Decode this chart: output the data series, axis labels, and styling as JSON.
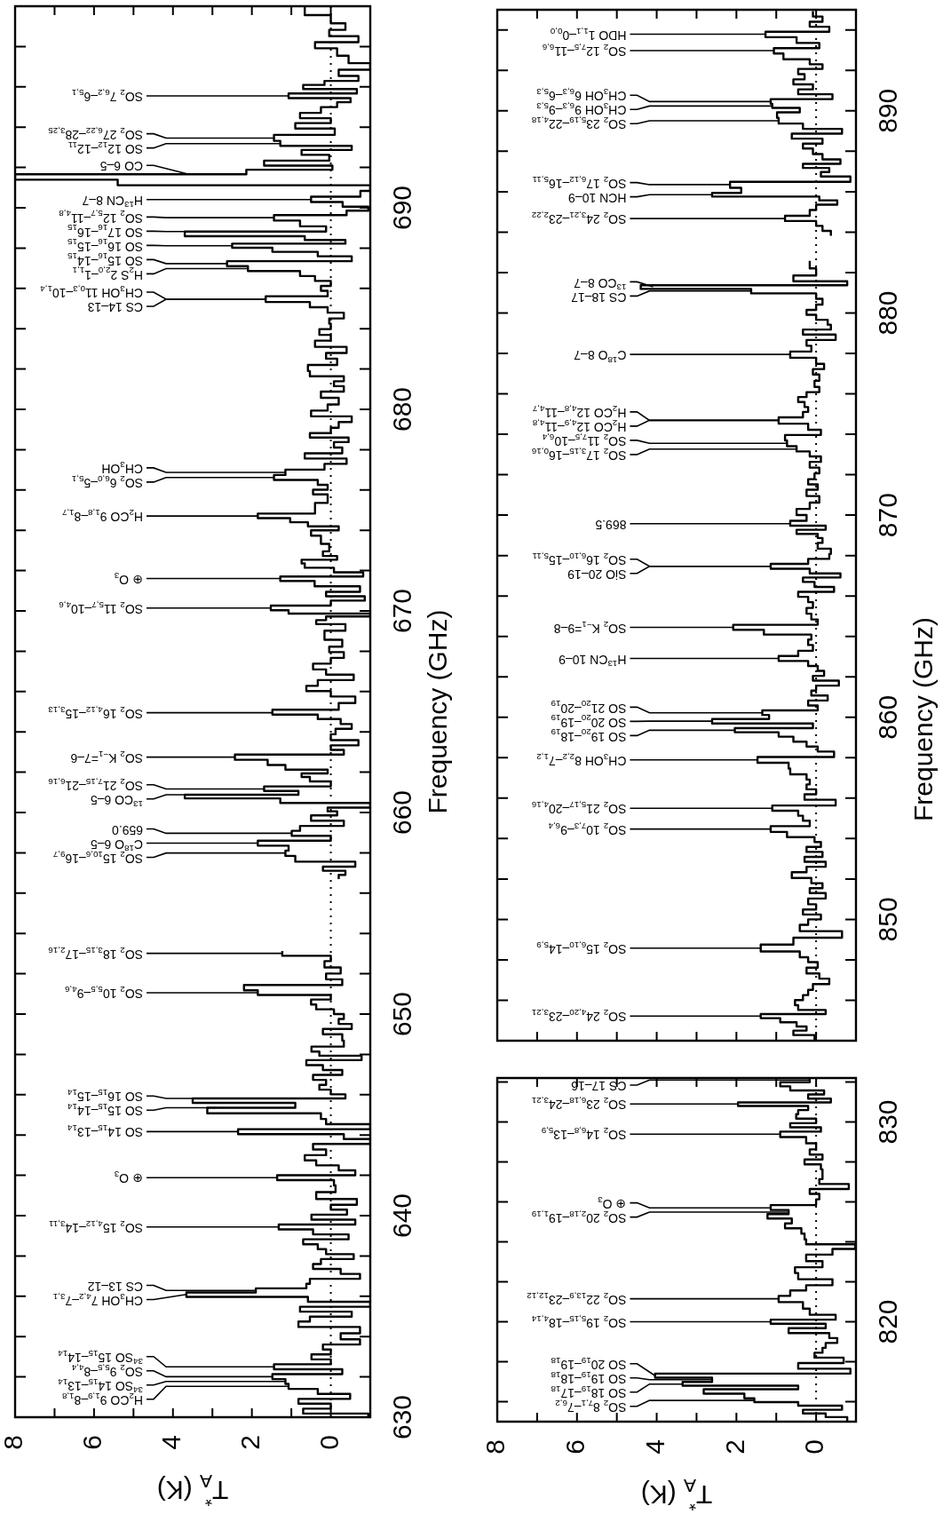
{
  "chart_data": [
    {
      "type": "step",
      "orientation": "horizontal",
      "xlabel": "T$_{A}$$^{*}$ (K)",
      "ylabel": "Frequency (GHz)",
      "xlim": [
        8,
        -1
      ],
      "ylim": [
        630,
        700
      ],
      "xticks": [
        0,
        {
          "value": 1,
          "label": null
        },
        2,
        {
          "value": 3,
          "label": null
        },
        4,
        {
          "value": 5,
          "label": null
        },
        6,
        {
          "value": 7,
          "label": null
        },
        8
      ],
      "yticks": [
        630,
        {
          "value": 632,
          "label": null
        },
        {
          "value": 634,
          "label": null
        },
        {
          "value": 636,
          "label": null
        },
        {
          "value": 638,
          "label": null
        },
        640,
        {
          "value": 642,
          "label": null
        },
        {
          "value": 644,
          "label": null
        },
        {
          "value": 646,
          "label": null
        },
        {
          "value": 648,
          "label": null
        },
        650,
        {
          "value": 652,
          "label": null
        },
        {
          "value": 654,
          "label": null
        },
        {
          "value": 656,
          "label": null
        },
        {
          "value": 658,
          "label": null
        },
        660,
        {
          "value": 662,
          "label": null
        },
        {
          "value": 664,
          "label": null
        },
        {
          "value": 666,
          "label": null
        },
        {
          "value": 668,
          "label": null
        },
        670,
        {
          "value": 672,
          "label": null
        },
        {
          "value": 674,
          "label": null
        },
        {
          "value": 676,
          "label": null
        },
        {
          "value": 678,
          "label": null
        },
        680,
        {
          "value": 682,
          "label": null
        },
        {
          "value": 684,
          "label": null
        },
        {
          "value": 686,
          "label": null
        },
        {
          "value": 688,
          "label": null
        },
        690,
        {
          "value": 692,
          "label": null
        },
        {
          "value": 694,
          "label": null
        },
        {
          "value": 696,
          "label": null
        },
        {
          "value": 698,
          "label": null
        }
      ],
      "ref_lines": [
        {
          "axis": "x",
          "value": 0,
          "line_style": "dotted"
        }
      ],
      "series": [
        {
          "color": "#000000",
          "x": [
            699.79,
            699.33,
            698.97,
            698.68,
            698.35,
            698.08,
            697.75,
            697.34,
            697.01,
            696.69,
            696.39,
            696.2,
            695.99,
            695.79,
            695.55,
            695.33,
            695.14,
            694.85,
            694.57,
            694.32,
            694.08,
            693.78,
            693.46,
            693.18,
            692.97,
            692.77,
            692.48,
            692.2,
            691.99,
            691.79,
            691.53,
            691.26,
            690.98,
            690.69,
            690.41,
            690.16,
            689.95,
            689.76,
            689.51,
            689.22,
            688.94,
            688.7,
            688.48,
            688.32,
            688.12,
            687.91,
            687.72,
            687.47,
            687.23,
            686.98,
            686.74,
            686.49,
            686.25,
            686.0,
            685.76,
            685.46,
            685.19,
            684.94,
            684.65,
            684.37,
            684.13,
            683.83,
            683.56,
            683.26,
            682.94,
            682.66,
            682.37,
            682.04,
            681.76,
            681.52,
            681.27,
            681.03,
            680.73,
            680.41,
            680.08,
            679.8,
            679.51,
            679.23,
            678.94,
            678.7,
            678.5,
            678.25,
            677.96,
            677.68,
            677.44,
            677.15,
            676.87,
            676.62,
            676.38,
            676.13,
            675.89,
            675.68,
            675.48,
            675.24,
            674.95,
            674.71,
            674.5,
            674.3,
            674.09,
            673.9,
            673.57,
            673.08,
            672.83,
            672.62,
            672.46,
            672.26,
            672.02,
            671.81,
            671.61,
            671.37,
            671.07,
            670.83,
            670.63,
            670.39,
            670.14,
            669.93,
            669.8,
            669.65,
            669.44,
            669.25,
            668.79,
            668.35,
            668.1,
            667.81,
            667.53,
            667.24,
            666.96,
            666.72,
            666.42,
            666.15,
            665.9,
            665.61,
            665.25,
            664.95,
            664.76,
            664.51,
            664.27,
            664.03,
            663.73,
            663.45,
            663.21,
            663.0,
            662.75,
            662.48,
            662.23,
            662.02,
            661.86,
            661.66,
            661.42,
            661.17,
            660.96,
            660.8,
            660.6,
            660.35,
            660.14,
            659.98,
            659.73,
            659.46,
            659.21,
            658.97,
            658.72,
            658.48,
            658.23,
            657.99,
            657.7,
            657.42,
            657.21,
            657.01,
            656.8,
            655,
            653.01,
            652.77,
            652.48,
            652.15,
            651.87,
            651.58,
            651.3,
            651.06,
            650.84,
            650.6,
            650.35,
            650.12,
            649.88,
            649.63,
            649.39,
            649.14,
            648.85,
            648.52,
            648.25,
            648.03,
            647.84,
            647.59,
            647.35,
            647.1,
            646.86,
            646.61,
            646.37,
            646.13,
            645.91,
            645.72,
            645.47,
            645.23,
            644.93,
            644.66,
            644.41,
            644.17,
            643.92,
            643.68,
            643.43,
            643.14,
            642.86,
            642.62,
            642.37,
            642.13,
            641.88,
            641.64,
            641.35,
            640.99,
            640.66,
            640.42,
            640.17,
            639.93,
            639.68,
            639.44,
            639.19,
            638.95,
            638.7,
            638.46,
            638.21,
            637.97,
            637.72,
            637.48,
            637.23,
            636.99,
            636.74,
            636.5,
            636.29,
            636.09,
            635.85,
            635.6,
            635.36,
            635.11,
            634.87,
            634.62,
            634.33,
            634.0,
            633.73,
            633.48,
            633.24,
            632.99,
            632.75,
            632.5,
            632.26,
            632.01,
            631.77,
            631.53,
            631.28,
            631.03,
            630.79,
            630.55,
            630.3,
            630.06
          ],
          "values": [
            0.66,
            0,
            -0.37,
            0.04,
            -0.7,
            0.4,
            -0.16,
            -0.45,
            -1,
            -0.2,
            -0.7,
            0.16,
            0.7,
            -0.66,
            1.07,
            -0.5,
            -0.16,
            0.25,
            0.78,
            0,
            0.9,
            -0.1,
            1.44,
            1.28,
            -0.53,
            0.74,
            0.04,
            1.69,
            -0.04,
            2.14,
            8,
            5.4,
            -1,
            -0.75,
            0.5,
            -0.3,
            -0.95,
            -0.4,
            1.44,
            0.78,
            0.12,
            3.7,
            0.66,
            -0.37,
            2.5,
            1.48,
            0.33,
            -0.53,
            2.63,
            2.1,
            0.78,
            0.4,
            0,
            0.25,
            0.08,
            1.65,
            0.53,
            0.08,
            -0.33,
            0.04,
            0,
            0.29,
            0,
            0.4,
            -0.4,
            0.12,
            -0.16,
            0.58,
            0.53,
            -0.33,
            -0.08,
            -0.33,
            0.25,
            -0.2,
            0.08,
            0.5,
            -0.53,
            -0.2,
            0,
            0.53,
            -0.45,
            -0.08,
            -0.29,
            0.66,
            -0.4,
            0.16,
            1.15,
            1.44,
            0.33,
            0.08,
            0.45,
            0.08,
            0.08,
            0.4,
            0.4,
            1.85,
            1.03,
            0.58,
            -0.2,
            0.5,
            0.25,
            0.04,
            0.2,
            -0.16,
            0.74,
            0.66,
            -0.08,
            -0.82,
            1.28,
            0.41,
            -0.74,
            0.12,
            -0.86,
            0,
            1.52,
            1.07,
            -1,
            0.12,
            0.37,
            -0.37,
            0.16,
            -0.29,
            0.04,
            -0.33,
            0,
            0.45,
            0.12,
            -0.58,
            0.33,
            0.62,
            0,
            -0.62,
            -0.2,
            1.48,
            0.33,
            -0.25,
            -0.53,
            -0.12,
            0,
            -0.7,
            0,
            -0.33,
            2.43,
            1.6,
            1.15,
            0.08,
            0.74,
            0.53,
            0,
            1.69,
            0.82,
            3.7,
            1.28,
            -1,
            0.08,
            -0.16,
            0.5,
            -0.33,
            0.78,
            0.99,
            0,
            1.85,
            1.07,
            1.15,
            0.9,
            -0.62,
            0.2,
            -0.37,
            -0.2,
            null,
            1.23,
            0,
            0.16,
            -0.25,
            0.12,
            -0.29,
            2.2,
            1.85,
            0,
            0.5,
            0.37,
            -0.08,
            -0.33,
            -0.2,
            -0.53,
            0.2,
            -0.29,
            -0.33,
            0.49,
            0.29,
            -0.78,
            0.62,
            0.2,
            -0.29,
            0.45,
            0.12,
            0.29,
            0,
            -0.37,
            3.5,
            0.9,
            3.13,
            0.25,
            0.12,
            -1,
            2.35,
            -0.33,
            -1,
            0.45,
            0.12,
            0.66,
            0.37,
            -0.2,
            -0.62,
            1.36,
            -0.08,
            -0.12,
            0.37,
            -0.66,
            0,
            -0.41,
            0.49,
            -0.62,
            1.32,
            0.45,
            -0.45,
            0.7,
            0.33,
            0.12,
            -0.58,
            0.25,
            0.45,
            -0.25,
            -0.74,
            0.53,
            0.62,
            1.9,
            3.66,
            0.58,
            -1,
            0.78,
            -0.53,
            0.53,
            0.82,
            -0.74,
            -0.25,
            -0.74,
            0.2,
            0,
            0.49,
            0,
            1.44,
            -0.29,
            1.48,
            1.15,
            1.07,
            0.33,
            -0.49,
            0.82,
            0,
            0.7,
            -0.95
          ]
        }
      ],
      "annotations": [
        {
          "text": "SO$_{2}$ 7$_{6,2}$–6$_{5,1}$",
          "x": 1.07,
          "y": 695.55
        },
        {
          "text": "SO$_{2}$ 27$_{6,22}$–28$_{3,25}$",
          "x": 1.44,
          "y": 693.46
        },
        {
          "text": "SO 12$_{12}$–12$_{11}$",
          "x": 1.28,
          "y": 693.18
        },
        {
          "text": "CO 6–5",
          "x": 3.6,
          "y": 691.66
        },
        {
          "text": "H$^{13}$CN 8–7",
          "x": 0.5,
          "y": 690.41
        },
        {
          "text": "SO$_{2}$ 12$_{5,7}$–11$_{4,8}$",
          "x": 1.44,
          "y": 689.51
        },
        {
          "text": "SO 17$_{16}$–16$_{15}$",
          "x": 2.5,
          "y": 688.82
        },
        {
          "text": "SO 16$_{16}$–15$_{15}$",
          "x": 2.5,
          "y": 688.12
        },
        {
          "text": "SO 15$_{16}$–14$_{15}$",
          "x": 2.63,
          "y": 687.23
        },
        {
          "text": "H$_{2}$S 2$_{2,0}$–1$_{1,1}$",
          "x": 2.1,
          "y": 686.98
        },
        {
          "text": "CH$_{3}$OH 11$_{0,3}$–10$_{1,4}$",
          "x": 1.65,
          "y": 685.46
        },
        {
          "text": "CS 14–13",
          "x": 1.65,
          "y": 685.46
        },
        {
          "text": "CH$_{3}$OH",
          "x": 1.15,
          "y": 676.87
        },
        {
          "text": "SO$_{2}$ 6$_{6,0}$–5$_{5,1}$",
          "x": 1.44,
          "y": 676.62
        },
        {
          "text": "H$_{2}$CO 9$_{1,8}$–8$_{1,7}$",
          "x": 1.85,
          "y": 674.71
        },
        {
          "text": "⊕ O$_{3}$",
          "x": 1.28,
          "y": 671.61
        },
        {
          "text": "SO$_{2}$ 11$_{5,7}$–10$_{4,6}$",
          "x": 1.52,
          "y": 670.14
        },
        {
          "text": "SO$_{2}$ 16$_{4,12}$–15$_{3,13}$",
          "x": 1.48,
          "y": 664.95
        },
        {
          "text": "SO$_{2}$ K$_{−1}$=7–6",
          "x": 2.43,
          "y": 662.75
        },
        {
          "text": "SO$_{2}$ 21$_{7,15}$–21$_{6,16}$",
          "x": 1.69,
          "y": 661.17
        },
        {
          "text": "$^{13}$CO 6–5",
          "x": 2.5,
          "y": 660.88
        },
        {
          "text": "659.0",
          "x": 0.99,
          "y": 658.97
        },
        {
          "text": "C$^{18}$O 6–5",
          "x": 1.85,
          "y": 658.48
        },
        {
          "text": "SO$_{2}$ 15$_{10,6}$–16$_{9,7}$",
          "x": 1.15,
          "y": 657.99
        },
        {
          "text": "SO$_{2}$ 18$_{3,15}$–17$_{2,16}$",
          "x": 1.23,
          "y": 653.01
        },
        {
          "text": "SO$_{2}$ 10$_{5,5}$–9$_{4,6}$",
          "x": 1.85,
          "y": 651.06
        },
        {
          "text": "SO 16$_{15}$–15$_{14}$",
          "x": 2.5,
          "y": 645.815
        },
        {
          "text": "SO 15$_{15}$–14$_{14}$",
          "x": 2.9,
          "y": 645.35
        },
        {
          "text": "SO 14$_{15}$–13$_{14}$",
          "x": 2.35,
          "y": 644.17
        },
        {
          "text": "⊕ O$_{3}$",
          "x": 1.36,
          "y": 641.88
        },
        {
          "text": "SO$_{2}$ 15$_{4,12}$–14$_{3,11}$",
          "x": 1.32,
          "y": 639.44
        },
        {
          "text": "CS 13–12",
          "x": 1.9,
          "y": 636.29
        },
        {
          "text": "CH$_{3}$OH 7$_{4,2}$–7$_{3,1}$",
          "x": 3.66,
          "y": 636.09
        },
        {
          "text": "$^{34}$SO 15$_{15}$–14$_{14}$",
          "x": 1.44,
          "y": 632.5
        },
        {
          "text": "SO$_{2}$ 9$_{5,5}$–8$_{4,4}$",
          "x": 1.48,
          "y": 632.01
        },
        {
          "text": "$^{34}$SO 14$_{15}$–13$_{14}$",
          "x": 1.15,
          "y": 631.77
        },
        {
          "text": "H$_{2}$CO 9$_{1,9}$–8$_{1,8}$",
          "x": 1.07,
          "y": 631.53
        }
      ]
    },
    {
      "type": "step",
      "orientation": "horizontal",
      "xlabel": "T$_{A}$$^{*}$ (K)",
      "xlim": [
        8,
        -1
      ],
      "ylim": [
        815,
        832.2
      ],
      "xticks": [
        0,
        {
          "value": 1,
          "label": null
        },
        2,
        {
          "value": 3,
          "label": null
        },
        4,
        {
          "value": 5,
          "label": null
        },
        6,
        {
          "value": 7,
          "label": null
        },
        8
      ],
      "yticks": [
        {
          "value": 816,
          "label": null
        },
        {
          "value": 818,
          "label": null
        },
        820,
        {
          "value": 822,
          "label": null
        },
        {
          "value": 824,
          "label": null
        },
        {
          "value": 826,
          "label": null
        },
        {
          "value": 828,
          "label": null
        },
        830,
        {
          "value": 832,
          "label": null
        }
      ],
      "ref_lines": [
        {
          "axis": "x",
          "value": 0,
          "line_style": "dotted"
        }
      ],
      "series": [
        {
          "color": "#000000",
          "x": [
            832.1,
            831.88,
            831.69,
            831.47,
            831.28,
            831.06,
            830.9,
            830.7,
            830.49,
            830.29,
            830.05,
            829.83,
            829.64,
            829.39,
            829.1,
            828.77,
            828.49,
            828.24,
            828.0,
            827.75,
            827.51,
            827.26,
            827.02,
            826.77,
            826.52,
            826.28,
            825.98,
            825.7,
            825.49,
            825.29,
            825.05,
            824.8,
            824.56,
            824.26,
            823.98,
            823.77,
            823.52,
            823.2,
            822.87,
            822.59,
            822.29,
            821.97,
            821.69,
            821.44,
            821.15,
            820.82,
            820.49,
            820.21,
            820.0,
            819.8,
            819.56,
            819.31,
            819.06,
            818.82,
            818.57,
            818.33,
            818.08,
            817.79,
            817.51,
            817.3,
            817.1,
            816.88,
            816.72,
            816.52,
            816.28,
            816.06,
            815.9,
            815.7,
            815.49,
            815.33,
            815.13
          ],
          "values": [
            0.16,
            0.9,
            0.65,
            -0.2,
            0.2,
            -0.37,
            1.96,
            0.2,
            0.45,
            0.5,
            0,
            0.65,
            -0.12,
            0.9,
            0.25,
            0,
            0.16,
            -0.16,
            0.29,
            -0.12,
            -0.16,
            -0.16,
            -0.08,
            -0.82,
            0.16,
            -0.08,
            0,
            1.14,
            0.69,
            1.22,
            0.61,
            0.78,
            0.37,
            0.29,
            0.25,
            -0.98,
            -0.41,
            0.25,
            -0.16,
            0.53,
            0.45,
            -0.41,
            0.25,
            0.65,
            0.94,
            0.33,
            0.16,
            -0.49,
            1.14,
            -0.24,
            0.69,
            -0.33,
            -0.53,
            -0.24,
            -0.16,
            0.04,
            -0.69,
            0.45,
            -0.86,
            4.04,
            2.61,
            3.35,
            0.45,
            2.82,
            1.8,
            1.55,
            0.45,
            -0.65,
            0.33,
            -0.24,
            -0.78
          ]
        }
      ],
      "annotations": [
        {
          "text": "CS 17–16",
          "x": 0.16,
          "y": 832.1
        },
        {
          "text": "SO$_{2}$ 23$_{6,18}$–24$_{3,21}$",
          "x": 1.96,
          "y": 830.9
        },
        {
          "text": "SO$_{2}$ 14$_{6,8}$–13$_{5,9}$",
          "x": 0.9,
          "y": 829.39
        },
        {
          "text": "⊕ O$_{3}$",
          "x": 1.14,
          "y": 825.7
        },
        {
          "text": "SO$_{2}$ 20$_{2,18}$–19$_{1,19}$",
          "x": 0.69,
          "y": 825.49
        },
        {
          "text": "SO$_{2}$ 22$_{13,9}$–23$_{12,12}$",
          "x": 0.94,
          "y": 821.15
        },
        {
          "text": "SO$_{2}$ 19$_{5,15}$–18$_{4,14}$",
          "x": 1.14,
          "y": 820.0
        },
        {
          "text": "SO 20$_{19}$–19$_{18}$",
          "x": 4.04,
          "y": 817.3
        },
        {
          "text": "SO 19$_{19}$–18$_{18}$",
          "x": 2.61,
          "y": 817.1
        },
        {
          "text": "SO 18$_{19}$–17$_{18}$",
          "x": 3.35,
          "y": 816.88
        },
        {
          "text": "SO$_{2}$ 8$_{7,1}$–7$_{6,2}$",
          "x": 1.55,
          "y": 816.06
        }
      ]
    },
    {
      "type": "step",
      "orientation": "horizontal",
      "ylabel": "Frequency (GHz)",
      "tick_labels": "y",
      "xlim": [
        8,
        -1
      ],
      "ylim": [
        844,
        895
      ],
      "xticks": [
        0,
        {
          "value": 1,
          "label": null
        },
        2,
        {
          "value": 3,
          "label": null
        },
        4,
        {
          "value": 5,
          "label": null
        },
        6,
        {
          "value": 7,
          "label": null
        },
        8
      ],
      "yticks": [
        {
          "value": 844,
          "label": null
        },
        {
          "value": 846,
          "label": null
        },
        {
          "value": 848,
          "label": null
        },
        850,
        {
          "value": 852,
          "label": null
        },
        {
          "value": 854,
          "label": null
        },
        {
          "value": 856,
          "label": null
        },
        {
          "value": 858,
          "label": null
        },
        860,
        {
          "value": 862,
          "label": null
        },
        {
          "value": 864,
          "label": null
        },
        {
          "value": 866,
          "label": null
        },
        {
          "value": 868,
          "label": null
        },
        870,
        {
          "value": 872,
          "label": null
        },
        {
          "value": 874,
          "label": null
        },
        {
          "value": 876,
          "label": null
        },
        {
          "value": 878,
          "label": null
        },
        880,
        {
          "value": 882,
          "label": null
        },
        {
          "value": 884,
          "label": null
        },
        {
          "value": 886,
          "label": null
        },
        {
          "value": 888,
          "label": null
        },
        890,
        {
          "value": 892,
          "label": null
        },
        {
          "value": 894,
          "label": null
        }
      ],
      "ref_lines": [
        {
          "axis": "x",
          "value": 0,
          "line_style": "dotted"
        }
      ],
      "series": [
        {
          "color": "#000000",
          "x": [
            894.8,
            894.53,
            894.28,
            894.04,
            893.79,
            893.5,
            893.22,
            892.98,
            892.69,
            892.41,
            892.2,
            891.95,
            891.68,
            891.43,
            891.19,
            890.94,
            890.7,
            890.46,
            890.24,
            890.05,
            889.8,
            889.51,
            889.23,
            888.99,
            888.75,
            888.5,
            888.26,
            888.01,
            887.72,
            887.48,
            887.28,
            887.07,
            886.87,
            886.63,
            886.35,
            886.03,
            885.85,
            885.67,
            885.47,
            885.24,
            884.95,
            884.67,
            884.43,
            884.19,
            883.94,
            883.2,
            882.39,
            882.02,
            881.69,
            881.45,
            881.29,
            881.09,
            880.85,
            880.55,
            880.28,
            880.03,
            879.79,
            879.54,
            879.3,
            879.06,
            878.81,
            878.52,
            878.24,
            877.95,
            877.62,
            877.35,
            877.1,
            876.81,
            876.48,
            876.21,
            875.96,
            875.72,
            875.47,
            875.23,
            874.98,
            874.69,
            874.36,
            874.09,
            873.84,
            873.55,
            873.27,
            873.03,
            872.78,
            872.49,
            872.21,
            871.92,
            871.64,
            871.4,
            871.11,
            870.78,
            870.46,
            870.15,
            869.86,
            869.58,
            869.37,
            869.18,
            868.97,
            868.77,
            868.48,
            868.2,
            867.96,
            867.71,
            867.47,
            867.22,
            867.01,
            866.82,
            866.57,
            866.33,
            866.08,
            865.84,
            865.55,
            865.27,
            864.98,
            864.7,
            864.45,
            864.21,
            863.97,
            863.72,
            863.43,
            863.15,
            862.91,
            862.66,
            862.42,
            862.17,
            861.93,
            861.69,
            861.44,
            861.2,
            860.95,
            860.71,
            860.46,
            860.22,
            860.01,
            859.81,
            859.57,
            859.36,
            859.16,
            858.92,
            858.67,
            858.43,
            858.18,
            857.89,
            857.61,
            857.32,
            857.04,
            856.8,
            856.56,
            856.31,
            856.07,
            855.77,
            855.5,
            855.25,
            855.01,
            854.76,
            854.47,
            854.19,
            853.95,
            853.71,
            853.46,
            853.22,
            852.97,
            852.73,
            852.48,
            852.19,
            851.91,
            851.67,
            851.42,
            851.18,
            850.89,
            850.61,
            850.37,
            850.12,
            849.88,
            849.58,
            849.26,
            848.93,
            848.58,
            848.25,
            848.01,
            847.76,
            847.47,
            847.19,
            846.95,
            846.65,
            846.38,
            846.13,
            845.89,
            845.63,
            845.41,
            845.22,
            845.01,
            844.81,
            844.6,
            844.4,
            844.16
          ],
          "values": [
            0.08,
            -0.16,
            0.16,
            -0.33,
            1.27,
            0.49,
            -0.08,
            1.06,
            0.82,
            0.16,
            -0.16,
            0.45,
            0.29,
            0.57,
            0.08,
            0.45,
            -0.41,
            1.14,
            1.1,
            0.41,
            0.98,
            0.94,
            0.33,
            -0.65,
            0.61,
            -0.16,
            0.33,
            0.08,
            -0.16,
            -0.61,
            0.33,
            -0.33,
            -0.12,
            -0.86,
            2.16,
            1.88,
            2.61,
            -0.08,
            -0.53,
            0,
            0.16,
            0.78,
            0,
            -0.16,
            -0.37,
            null,
            0.16,
            0,
            0.57,
            -0.78,
            4.4,
            1.63,
            0,
            -0.16,
            0,
            0.24,
            0,
            -0.29,
            -0.37,
            0.33,
            -0.49,
            0.24,
            0.12,
            0.65,
            0,
            -0.2,
            0.08,
            -0.08,
            0.04,
            -0.08,
            0.24,
            0.45,
            0.29,
            0.2,
            0.33,
            0.94,
            0.2,
            -0.12,
            0.78,
            0.73,
            0.49,
            0.16,
            -0.12,
            0.16,
            -0.08,
            0.04,
            0.2,
            -0.04,
            0.24,
            -0.08,
            0.16,
            0.49,
            0.24,
            0.65,
            -0.24,
            0.49,
            -0.04,
            -0.16,
            -0.04,
            -0.37,
            -0.33,
            0.2,
            1.14,
            0.16,
            -0.61,
            0.33,
            0.04,
            -0.45,
            0.45,
            0.2,
            0.08,
            0.24,
            0.12,
            -0.04,
            2.08,
            1.31,
            0.12,
            0.2,
            0.08,
            0.45,
            0.94,
            0.2,
            -0.04,
            -0.2,
            0.08,
            -0.57,
            0,
            0.12,
            -0.29,
            0.2,
            -0.04,
            1.35,
            1.18,
            2.61,
            0.08,
            2.04,
            0.94,
            0.57,
            0.24,
            -0.04,
            -0.45,
            1.47,
            0.69,
            0.65,
            0.24,
            0.16,
            0.24,
            0,
            0.29,
            -0.49,
            1.1,
            0.45,
            0.33,
            0.16,
            1.14,
            0.73,
            0.04,
            -0.12,
            0.24,
            -0.16,
            0.29,
            -0.24,
            0.24,
            0.61,
            0.12,
            -0.16,
            0.16,
            -0.24,
            0.2,
            0,
            0.33,
            -0.12,
            0.2,
            0.41,
            -0.65,
            0.57,
            1.39,
            0.41,
            0.2,
            -0.04,
            0.24,
            -0.08,
            -0.33,
            0.08,
            0.2,
            0.33,
            0.53,
            0.45,
            -0.24,
            1.39,
            0.9,
            0.49,
            0.24,
            0.57,
            0.04
          ]
        }
      ],
      "annotations": [
        {
          "text": "HDO 1$_{1,1}$–0$_{0,0}$",
          "x": 1.27,
          "y": 893.79
        },
        {
          "text": "SO$_{2}$ 12$_{7,5}$–11$_{6,6}$",
          "x": 1.06,
          "y": 892.98
        },
        {
          "text": "CH$_{3}$OH 6$_{6,3}$–6$_{5,3}$",
          "x": 1.14,
          "y": 890.46
        },
        {
          "text": "CH$_{3}$OH 9$_{6,3}$–9$_{5,3}$",
          "x": 1.1,
          "y": 890.24
        },
        {
          "text": "SO$_{2}$ 23$_{5,19}$–22$_{4,18}$",
          "x": 0.94,
          "y": 889.51
        },
        {
          "text": "SO$_{2}$ 17$_{6,12}$–16$_{5,11}$",
          "x": 2.16,
          "y": 886.35
        },
        {
          "text": "HCN 10–9",
          "x": 2.61,
          "y": 885.85
        },
        {
          "text": "SO$_{2}$ 24$_{3,21}$–23$_{2,22}$",
          "x": 0.78,
          "y": 884.67
        },
        {
          "text": "$^{13}$CO 8–7",
          "x": 4.4,
          "y": 881.29
        },
        {
          "text": "CS 18–17",
          "x": 1.63,
          "y": 881.09
        },
        {
          "text": "C$^{18}$O 8–7",
          "x": 0.65,
          "y": 877.95
        },
        {
          "text": "H$_{2}$CO 12$_{4,8}$–11$_{4,7}$",
          "x": 0.94,
          "y": 874.69
        },
        {
          "text": "H$_{2}$CO 12$_{4,9}$–11$_{4,8}$",
          "x": 0.94,
          "y": 874.69
        },
        {
          "text": "SO$_{2}$ 11$_{7,5}$–10$_{6,4}$",
          "x": 0.73,
          "y": 873.55
        },
        {
          "text": "SO$_{2}$ 17$_{3,15}$–16$_{0,16}$",
          "x": 0.49,
          "y": 873.27
        },
        {
          "text": "869.5",
          "x": 0.65,
          "y": 869.58
        },
        {
          "text": "SO$_{2}$ 16$_{6,10}$–15$_{5,11}$",
          "x": 1.14,
          "y": 867.47
        },
        {
          "text": "SiO 20–19",
          "x": 1.14,
          "y": 867.47
        },
        {
          "text": "SO$_{2}$ K$_{−1}$=9–8",
          "x": 2.08,
          "y": 864.45
        },
        {
          "text": "H$^{13}$CN 10–9",
          "x": 0.94,
          "y": 862.91
        },
        {
          "text": "SO 21$_{20}$–20$_{19}$",
          "x": 1.35,
          "y": 860.22
        },
        {
          "text": "SO 20$_{20}$–19$_{19}$",
          "x": 2.61,
          "y": 859.81
        },
        {
          "text": "SO 19$_{20}$–18$_{19}$",
          "x": 2.04,
          "y": 859.36
        },
        {
          "text": "CH$_{3}$OH 8$_{2,2}$–7$_{1,2}$",
          "x": 1.47,
          "y": 857.89
        },
        {
          "text": "SO$_{2}$ 21$_{5,17}$–20$_{4,16}$",
          "x": 1.1,
          "y": 855.5
        },
        {
          "text": "SO$_{2}$ 10$_{7,3}$–9$_{6,4}$",
          "x": 1.14,
          "y": 854.47
        },
        {
          "text": "SO$_{2}$ 15$_{6,10}$–14$_{5,9}$",
          "x": 1.39,
          "y": 848.58
        },
        {
          "text": "SO$_{2}$ 24$_{4,20}$–23$_{3,21}$",
          "x": 1.39,
          "y": 845.22
        }
      ]
    }
  ]
}
